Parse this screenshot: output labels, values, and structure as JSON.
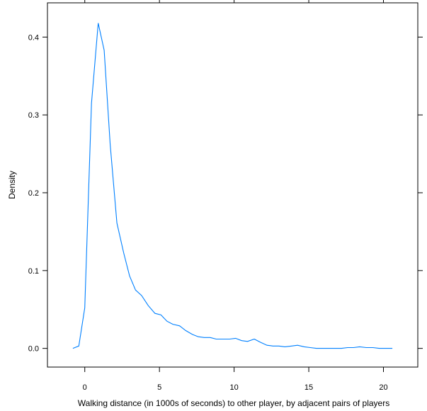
{
  "chart_data": {
    "type": "line",
    "title": "",
    "xlabel": "Walking distance (in 1000s of seconds) to other player, by adjacent pairs of players",
    "ylabel": "Density",
    "xlim": [
      -2.5,
      22.3
    ],
    "ylim": [
      -0.024,
      0.444
    ],
    "xticks": [
      0,
      5,
      10,
      15,
      20
    ],
    "yticks": [
      0.0,
      0.1,
      0.2,
      0.3,
      0.4
    ],
    "xtick_labels": [
      "0",
      "5",
      "10",
      "15",
      "20"
    ],
    "ytick_labels": [
      "0.0",
      "0.1",
      "0.2",
      "0.3",
      "0.4"
    ],
    "grid": false,
    "legend": "none",
    "series_color": "#0080ff",
    "series": [
      {
        "x": [
          -0.8,
          -0.4,
          0.0,
          0.45,
          0.9,
          1.3,
          1.7,
          2.15,
          2.6,
          3.0,
          3.4,
          3.8,
          4.25,
          4.7,
          5.1,
          5.5,
          5.9,
          6.35,
          6.75,
          7.2,
          7.6,
          8.0,
          8.4,
          8.8,
          9.25,
          9.7,
          10.1,
          10.5,
          10.9,
          11.35,
          11.75,
          12.2,
          12.6,
          13.0,
          13.4,
          13.85,
          14.25,
          14.7,
          15.1,
          15.5,
          15.9,
          16.35,
          16.75,
          17.2,
          17.6,
          18.0,
          18.4,
          18.85,
          19.3,
          19.7,
          20.1,
          20.6
        ],
        "y": [
          0.0,
          0.003,
          0.052,
          0.315,
          0.418,
          0.383,
          0.262,
          0.161,
          0.123,
          0.093,
          0.075,
          0.068,
          0.055,
          0.045,
          0.043,
          0.035,
          0.031,
          0.029,
          0.023,
          0.018,
          0.015,
          0.014,
          0.014,
          0.012,
          0.012,
          0.012,
          0.013,
          0.01,
          0.009,
          0.012,
          0.008,
          0.004,
          0.003,
          0.003,
          0.002,
          0.003,
          0.004,
          0.002,
          0.001,
          0.0,
          0.0,
          0.0,
          0.0,
          0.0,
          0.001,
          0.001,
          0.002,
          0.001,
          0.001,
          0.0,
          0.0,
          0.0
        ]
      }
    ]
  }
}
